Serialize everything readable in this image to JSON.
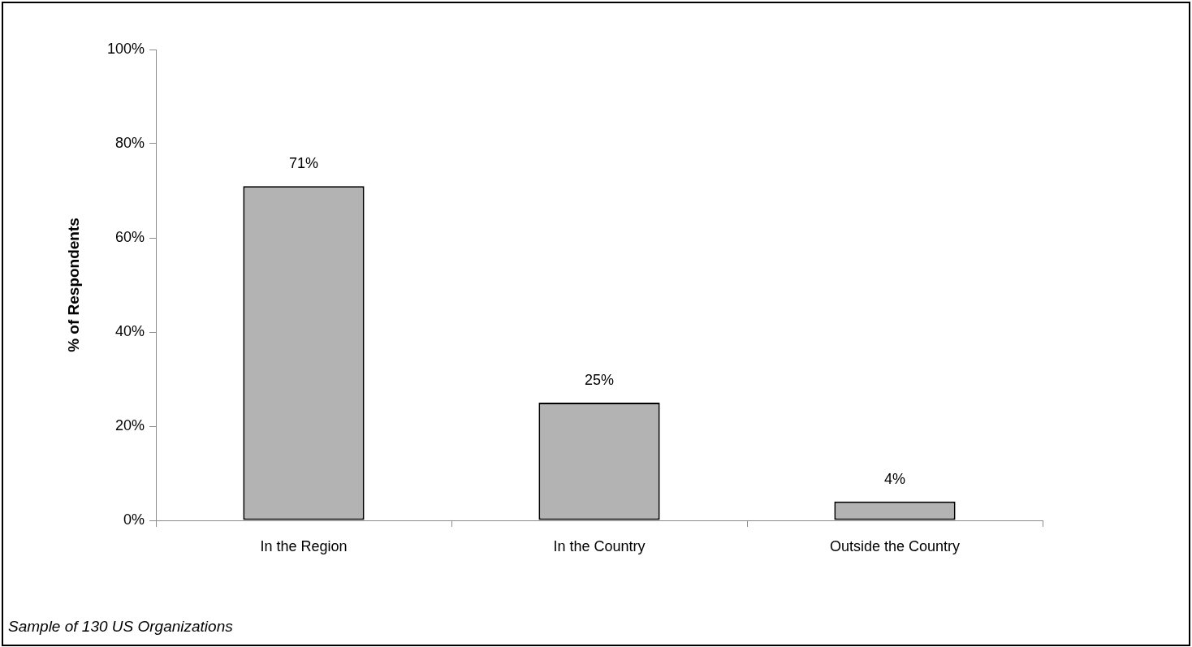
{
  "chart_data": {
    "type": "bar",
    "ylabel": "% of Respondents",
    "categories": [
      "In the Region",
      "In the Country",
      "Outside the Country"
    ],
    "values": [
      71,
      25,
      4
    ],
    "color": "#b3b3b3",
    "value_labels": [
      "71%",
      "25%",
      "4%"
    ],
    "ylim": [
      0,
      100
    ],
    "yticks": [
      {
        "value": 0,
        "label": "0%"
      },
      {
        "value": 20,
        "label": "20%"
      },
      {
        "value": 40,
        "label": "40%"
      },
      {
        "value": 60,
        "label": "60%"
      },
      {
        "value": 80,
        "label": "80%"
      },
      {
        "value": 100,
        "label": "100%"
      }
    ],
    "annotations": [
      "Sample of 130 US Organizations"
    ]
  }
}
